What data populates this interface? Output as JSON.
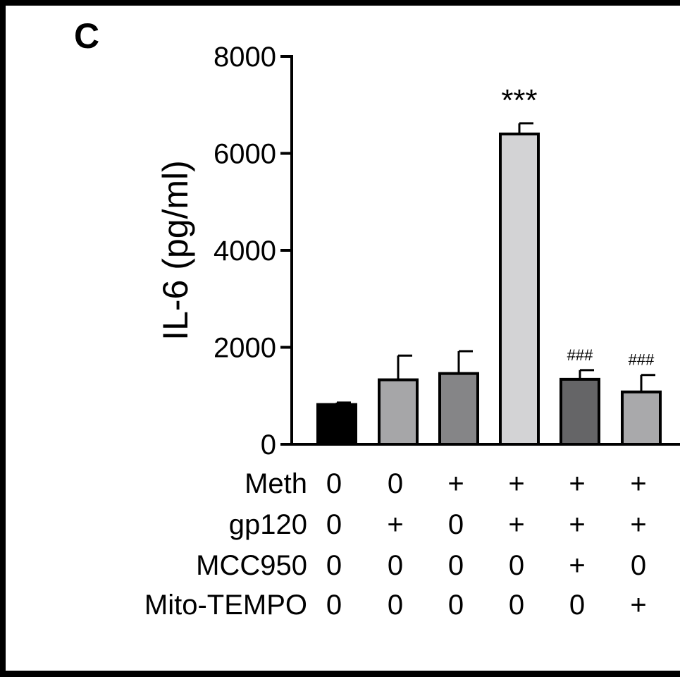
{
  "panel_label": "C",
  "chart_data": {
    "type": "bar",
    "ylabel": "IL-6 (pg/ml)",
    "ylim": [
      0,
      8000
    ],
    "yticks": [
      "0",
      "2000",
      "4000",
      "6000",
      "8000"
    ],
    "grid": false,
    "legend": "none",
    "bars": [
      {
        "value": 820,
        "error": 40,
        "color": "#000000",
        "annotation": ""
      },
      {
        "value": 1330,
        "error": 500,
        "color": "#a6a6a8",
        "annotation": ""
      },
      {
        "value": 1460,
        "error": 460,
        "color": "#858587",
        "annotation": ""
      },
      {
        "value": 6400,
        "error": 220,
        "color": "#d3d3d5",
        "annotation": "***"
      },
      {
        "value": 1340,
        "error": 190,
        "color": "#656567",
        "annotation": "###"
      },
      {
        "value": 1080,
        "error": 350,
        "color": "#a9a9ab",
        "annotation": "###"
      }
    ],
    "treatments": [
      {
        "name": "Meth",
        "values": [
          "0",
          "0",
          "+",
          "+",
          "+",
          "+"
        ]
      },
      {
        "name": "gp120",
        "values": [
          "0",
          "+",
          "0",
          "+",
          "+",
          "+"
        ]
      },
      {
        "name": "MCC950",
        "values": [
          "0",
          "0",
          "0",
          "0",
          "+",
          "0"
        ]
      },
      {
        "name": "Mito-TEMPO",
        "values": [
          "0",
          "0",
          "0",
          "0",
          "0",
          "+"
        ]
      }
    ]
  }
}
